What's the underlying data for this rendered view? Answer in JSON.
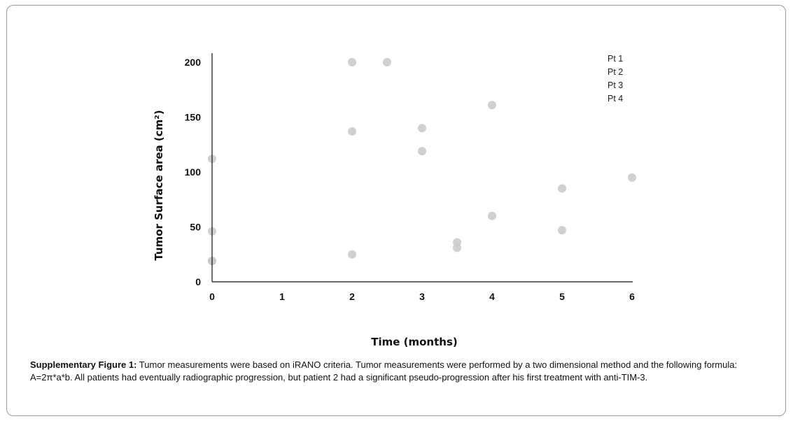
{
  "chart_data": {
    "type": "scatter",
    "xlabel": "Time (months)",
    "ylabel": "Tumor Surface area (cm²)",
    "xlim": [
      0,
      6
    ],
    "ylim": [
      0,
      200
    ],
    "xticks": [
      "0",
      "1",
      "2",
      "3",
      "4",
      "5",
      "6"
    ],
    "yticks": [
      "0",
      "50",
      "100",
      "150",
      "200"
    ],
    "legend": [
      "Pt 1",
      "Pt 2",
      "Pt 3",
      "Pt 4"
    ],
    "legend_position": "top-right",
    "grid": false,
    "point_color": "#c8c8c8",
    "points": [
      {
        "x": 0,
        "y": 112
      },
      {
        "x": 0,
        "y": 46
      },
      {
        "x": 0,
        "y": 19
      },
      {
        "x": 0,
        "y": 19
      },
      {
        "x": 2,
        "y": 200
      },
      {
        "x": 2,
        "y": 137
      },
      {
        "x": 2,
        "y": 25
      },
      {
        "x": 2.5,
        "y": 200
      },
      {
        "x": 3,
        "y": 140
      },
      {
        "x": 3,
        "y": 119
      },
      {
        "x": 3.5,
        "y": 36
      },
      {
        "x": 3.5,
        "y": 31
      },
      {
        "x": 4,
        "y": 161
      },
      {
        "x": 4,
        "y": 60
      },
      {
        "x": 5,
        "y": 85
      },
      {
        "x": 5,
        "y": 47
      },
      {
        "x": 6,
        "y": 95
      }
    ]
  },
  "caption": {
    "lead": "Supplementary Figure 1:",
    "text": " Tumor measurements were based on iRANO criteria. Tumor measurements were performed by a two dimensional method and the following formula: A=2π*a*b. All patients had eventually radiographic progression, but patient 2 had a significant pseudo-progression after his first treatment with anti-TIM-3."
  }
}
